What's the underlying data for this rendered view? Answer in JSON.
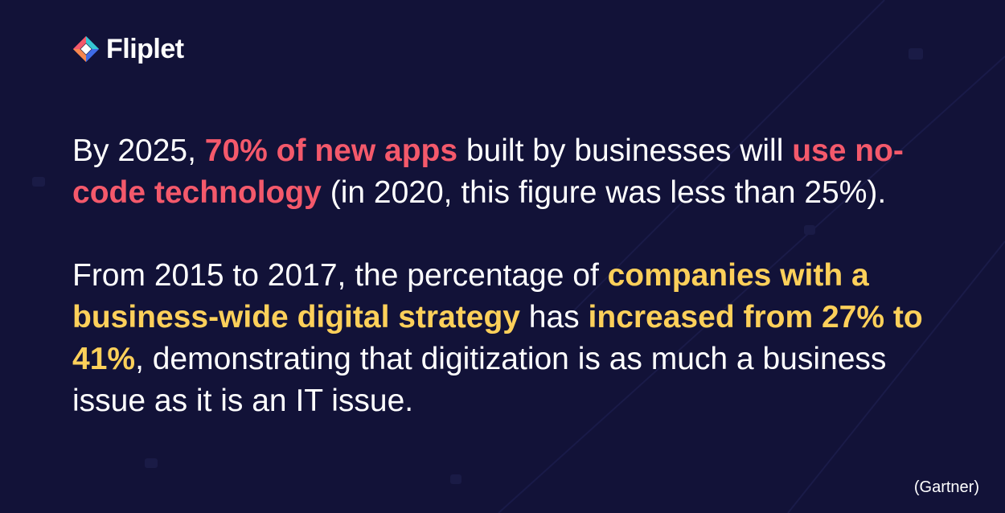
{
  "brand": {
    "name": "Fliplet",
    "logo_icon": "fliplet-logo-icon",
    "colors": {
      "background": "#121238",
      "red": "#f4596b",
      "yellow": "#fdd05a",
      "orange": "#f7874f",
      "teal": "#35c7d3",
      "blue": "#3f6ce8"
    }
  },
  "stat1": {
    "t1": "By 2025, ",
    "h1": "70% of new apps",
    "t2": " built by businesses will ",
    "h2": "use no-code technology",
    "t3": " (in 2020, this figure was less than 25%)."
  },
  "stat2": {
    "t1": "From 2015 to 2017, the percentage of ",
    "h1": "companies with a business-wide digital strategy",
    "t2": " has ",
    "h2": "increased from 27% to 41%",
    "t3": ", demonstrating that digitization is as much a business issue as it is an IT issue."
  },
  "source": "(Gartner)"
}
